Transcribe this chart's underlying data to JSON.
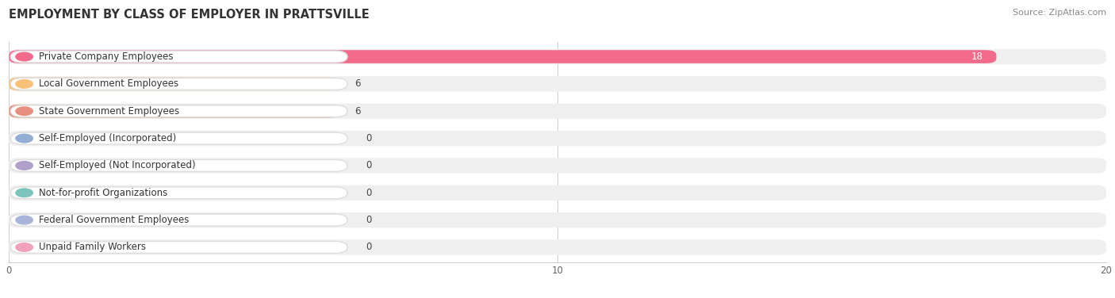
{
  "title": "EMPLOYMENT BY CLASS OF EMPLOYER IN PRATTSVILLE",
  "source": "Source: ZipAtlas.com",
  "categories": [
    "Private Company Employees",
    "Local Government Employees",
    "State Government Employees",
    "Self-Employed (Incorporated)",
    "Self-Employed (Not Incorporated)",
    "Not-for-profit Organizations",
    "Federal Government Employees",
    "Unpaid Family Workers"
  ],
  "values": [
    18,
    6,
    6,
    0,
    0,
    0,
    0,
    0
  ],
  "bar_colors": [
    "#f26b8a",
    "#f9c07a",
    "#e89080",
    "#92aed4",
    "#b09ecb",
    "#7dc4be",
    "#a8b4d8",
    "#f0a0b8"
  ],
  "row_bg_color": "#efefef",
  "label_box_color": "#ffffff",
  "xlim_max": 20,
  "xticks": [
    0,
    10,
    20
  ],
  "title_fontsize": 10.5,
  "label_fontsize": 8.5,
  "value_fontsize": 8.5,
  "source_fontsize": 8
}
